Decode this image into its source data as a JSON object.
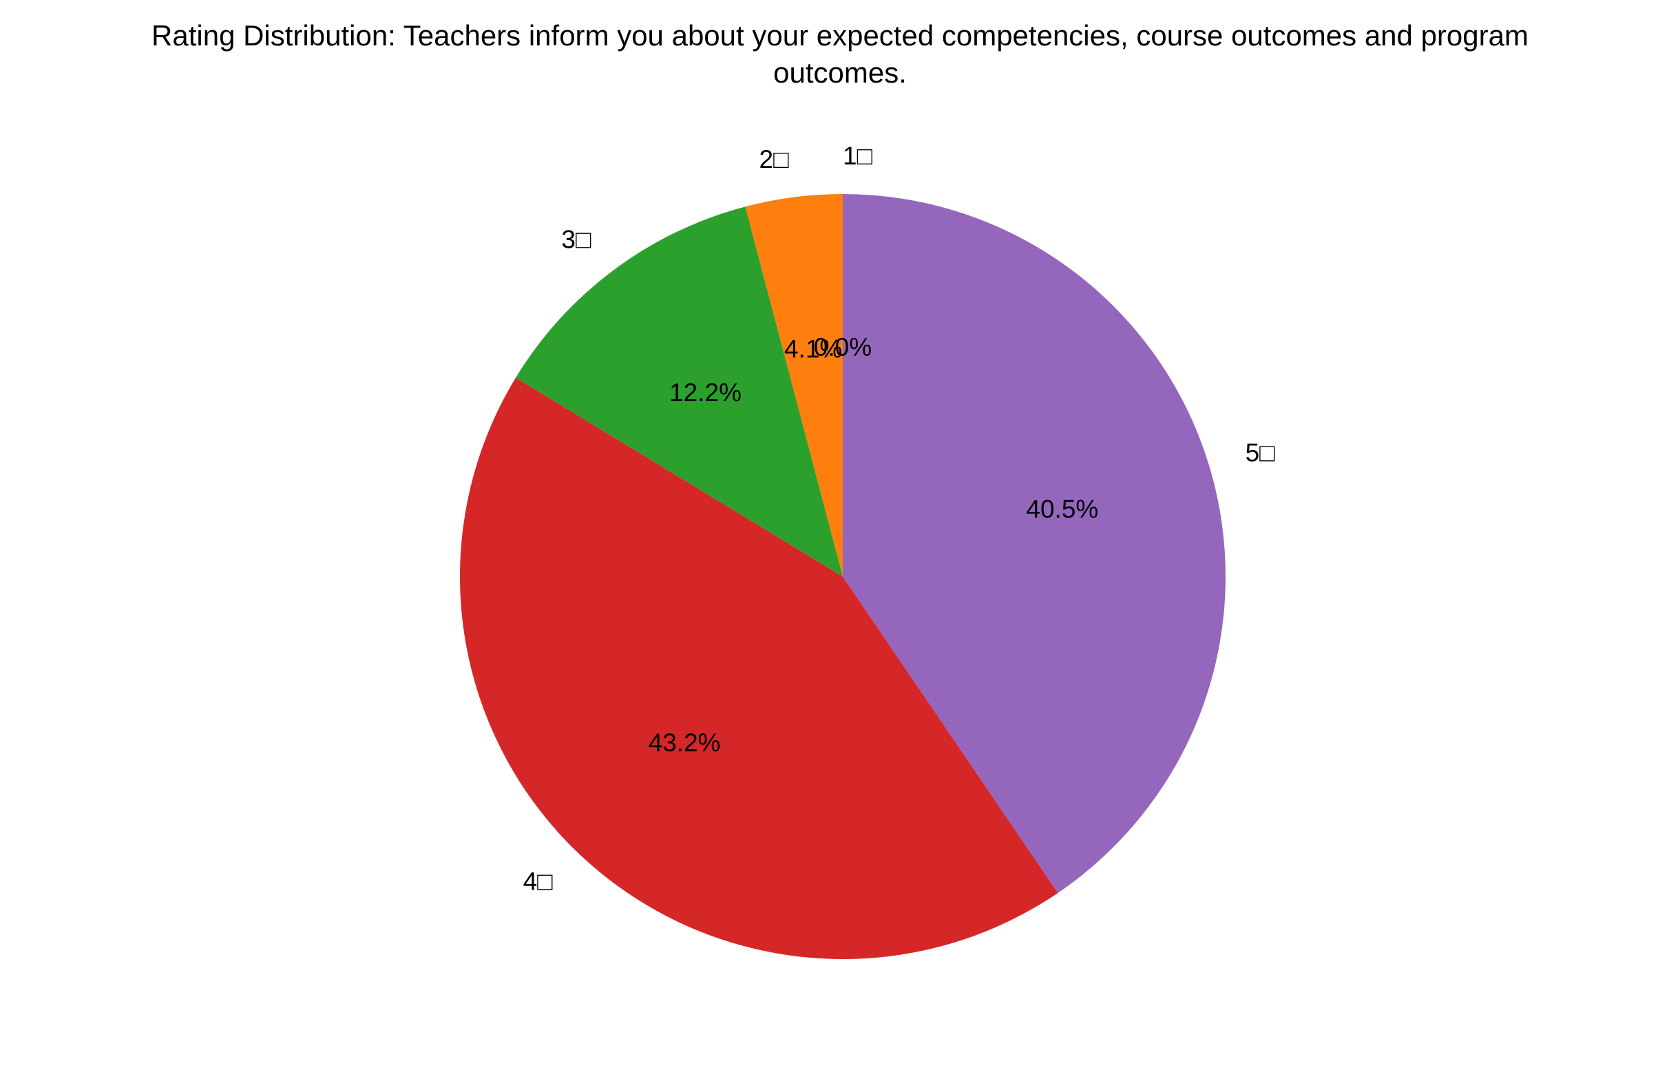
{
  "chart_data": {
    "type": "pie",
    "title_lines": [
      "Rating Distribution: Teachers inform you about your expected competencies, course outcomes and program",
      "outcomes."
    ],
    "slices": [
      {
        "label": "1□",
        "value": 0.0,
        "pct_label": "0.0%",
        "color": "#1f77b4"
      },
      {
        "label": "2□",
        "value": 4.1,
        "pct_label": "4.1%",
        "color": "#ff7f0e"
      },
      {
        "label": "3□",
        "value": 12.2,
        "pct_label": "12.2%",
        "color": "#2ca02c"
      },
      {
        "label": "4□",
        "value": 43.2,
        "pct_label": "43.2%",
        "color": "#d62728"
      },
      {
        "label": "5□",
        "value": 40.5,
        "pct_label": "40.5%",
        "color": "#9467bd"
      }
    ],
    "start_angle_deg": 90,
    "direction": "counterclockwise",
    "legend": "none"
  }
}
